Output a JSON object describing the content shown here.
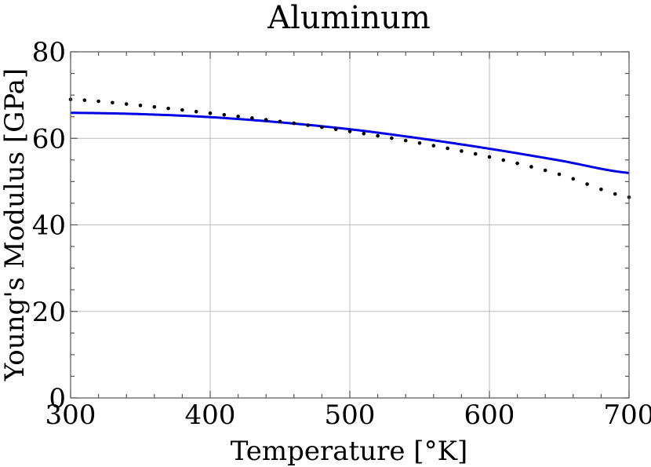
{
  "chart_data": {
    "type": "line",
    "title": "Aluminum",
    "xlabel": "Temperature [°K]",
    "ylabel": "Young's Modulus [GPa]",
    "xlim": [
      300,
      700
    ],
    "ylim": [
      0,
      80
    ],
    "xticks": [
      300,
      400,
      500,
      600,
      700
    ],
    "yticks": [
      0,
      20,
      40,
      60,
      80
    ],
    "grid": true,
    "series": [
      {
        "style": "solid",
        "color": "#0000e6",
        "x": [
          300,
          350,
          400,
          450,
          500,
          550,
          600,
          650,
          700
        ],
        "values": [
          65.9,
          65.6,
          64.9,
          63.7,
          62.1,
          60.0,
          57.6,
          54.9,
          52.0
        ]
      },
      {
        "style": "dotted",
        "color": "#000000",
        "x": [
          300,
          350,
          400,
          450,
          500,
          550,
          600,
          650,
          700
        ],
        "values": [
          69.0,
          67.6,
          65.8,
          63.9,
          61.6,
          58.9,
          55.7,
          51.7,
          46.4
        ]
      }
    ]
  }
}
